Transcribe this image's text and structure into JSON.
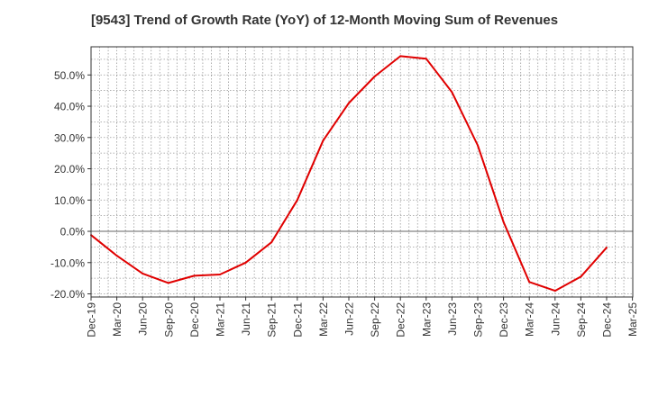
{
  "chart_data": {
    "type": "line",
    "title": "[9543]  Trend of Growth Rate (YoY) of 12-Month Moving Sum of Revenues",
    "xlabel": "",
    "ylabel": "",
    "ylim": [
      -21,
      59
    ],
    "yticks": [
      -20,
      -10,
      0,
      10,
      20,
      30,
      40,
      50
    ],
    "ytick_labels": [
      "-20.0%",
      "-10.0%",
      "0.0%",
      "10.0%",
      "20.0%",
      "30.0%",
      "40.0%",
      "50.0%"
    ],
    "x_tick_labels": [
      "Dec-19",
      "Mar-20",
      "Jun-20",
      "Sep-20",
      "Dec-20",
      "Mar-21",
      "Jun-21",
      "Sep-21",
      "Dec-21",
      "Mar-22",
      "Jun-22",
      "Sep-22",
      "Dec-22",
      "Mar-23",
      "Jun-23",
      "Sep-23",
      "Dec-23",
      "Mar-24",
      "Jun-24",
      "Sep-24",
      "Dec-24",
      "Mar-25"
    ],
    "grid": true,
    "legend": "none",
    "series": [
      {
        "color": "#e00000",
        "x": [
          "Dec-19",
          "Mar-20",
          "Jun-20",
          "Sep-20",
          "Dec-20",
          "Mar-21",
          "Jun-21",
          "Sep-21",
          "Dec-21",
          "Mar-22",
          "Jun-22",
          "Sep-22",
          "Dec-22",
          "Mar-23",
          "Jun-23",
          "Sep-23",
          "Dec-23",
          "Mar-24",
          "Jun-24",
          "Sep-24",
          "Dec-24"
        ],
        "values": [
          -1.2,
          -7.8,
          -13.5,
          -16.5,
          -14.2,
          -13.8,
          -10.0,
          -3.5,
          10.0,
          29.0,
          41.0,
          49.5,
          56.0,
          55.2,
          44.5,
          27.5,
          3.0,
          -16.2,
          -19.0,
          -14.5,
          -5.2
        ]
      }
    ]
  }
}
